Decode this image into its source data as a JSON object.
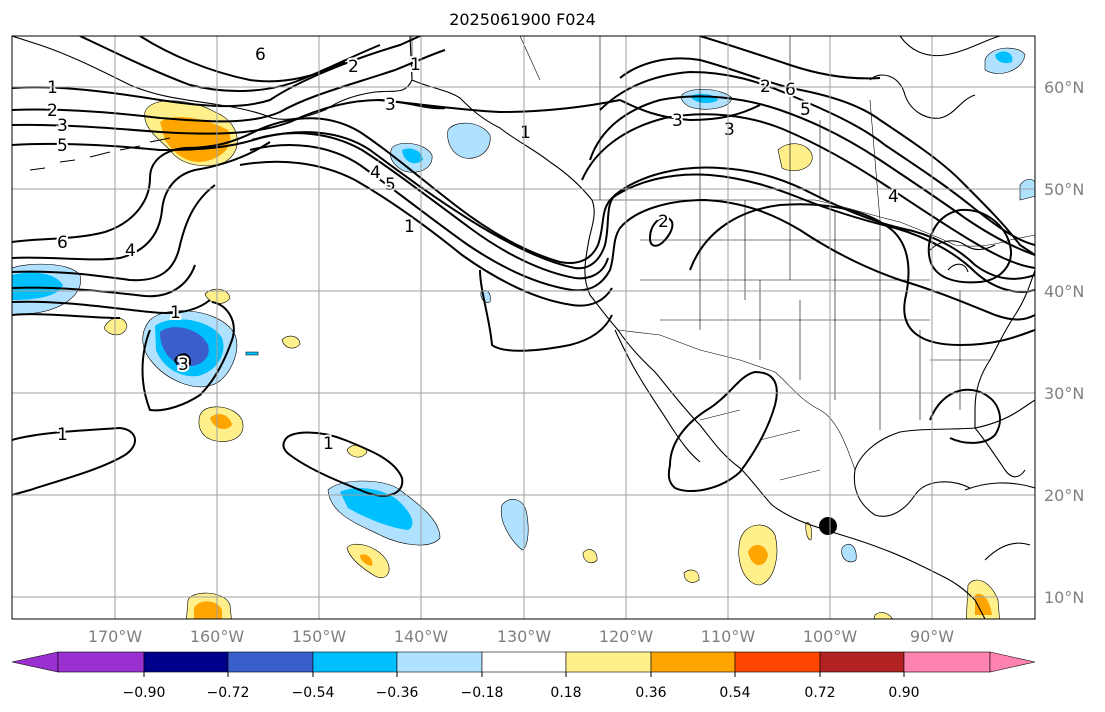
{
  "title": "2025061900 F024",
  "lon_ticks": [
    "170°W",
    "160°W",
    "150°W",
    "140°W",
    "130°W",
    "120°W",
    "110°W",
    "100°W",
    "90°W"
  ],
  "lat_ticks": [
    "60°N",
    "50°N",
    "40°N",
    "30°N",
    "20°N",
    "10°N"
  ],
  "colorbar": {
    "ticks": [
      "−0.90",
      "−0.72",
      "−0.54",
      "−0.36",
      "−0.18",
      "0.18",
      "0.36",
      "0.54",
      "0.72",
      "0.90"
    ],
    "colors": [
      "#9b30d0",
      "#00008b",
      "#3a5fcd",
      "#00bfff",
      "#b0e2ff",
      "#ffffff",
      "#fff08c",
      "#ffa500",
      "#ff4500",
      "#b22222",
      "#ff83b0"
    ]
  },
  "contour_labels": [
    "1",
    "2",
    "3",
    "5",
    "6",
    "4",
    "1",
    "1",
    "2",
    "3",
    "1",
    "6",
    "5",
    "4",
    "3",
    "2",
    "1",
    "1",
    "2",
    "3",
    "6",
    "5",
    "4",
    "3",
    "1"
  ],
  "colors": {
    "tick_text": "#808080",
    "grid": "#a0a0a0",
    "contour": "#000000"
  }
}
